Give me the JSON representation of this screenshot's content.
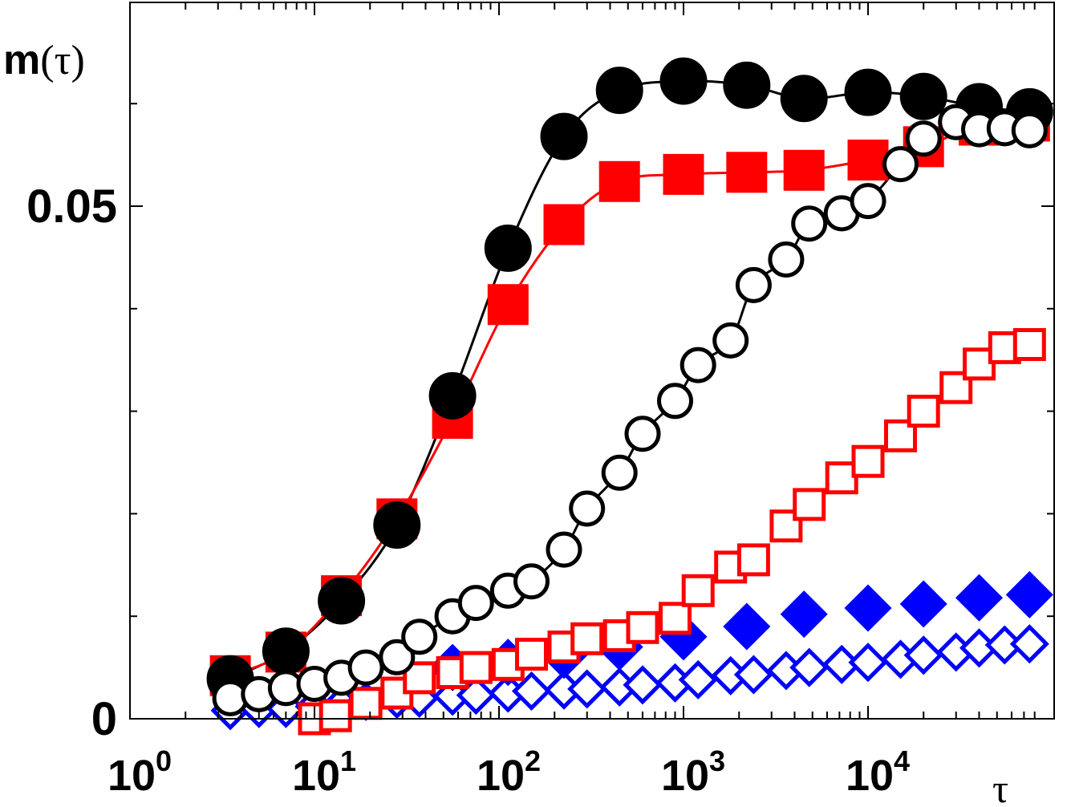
{
  "chart_data": {
    "type": "line",
    "title": "",
    "xlabel": "τ",
    "ylabel_bold": "m",
    "ylabel_rest": "(τ)",
    "x_scale": "log",
    "xlim": [
      1,
      80000
    ],
    "ylim": [
      0,
      0.07
    ],
    "x_tick_labels": [
      {
        "base": "10",
        "exp": "0",
        "value": 1
      },
      {
        "base": "10",
        "exp": "1",
        "value": 10
      },
      {
        "base": "10",
        "exp": "2",
        "value": 100
      },
      {
        "base": "10",
        "exp": "3",
        "value": 1000
      },
      {
        "base": "10",
        "exp": "4",
        "value": 10000
      }
    ],
    "y_tick_labels": [
      {
        "label": "0",
        "value": 0
      },
      {
        "label": "0.05",
        "value": 0.05
      }
    ],
    "y_minor_ticks": [
      0.01,
      0.02,
      0.03,
      0.04,
      0.06
    ],
    "grid": false,
    "series": [
      {
        "marker": "circle",
        "filled": true,
        "color": "#000000",
        "line": true,
        "x": [
          3.5,
          7,
          14,
          28,
          56,
          112,
          225,
          450,
          1000,
          2200,
          4500,
          10000,
          20000,
          40000,
          75000
        ],
        "y": [
          0.0039,
          0.0066,
          0.0115,
          0.0189,
          0.0315,
          0.0459,
          0.0568,
          0.0613,
          0.0622,
          0.0618,
          0.0605,
          0.0611,
          0.0607,
          0.0597,
          0.0592
        ]
      },
      {
        "marker": "square",
        "filled": true,
        "color": "#ff0000",
        "line": true,
        "x": [
          3.5,
          7,
          14,
          28,
          56,
          112,
          225,
          450,
          1000,
          2200,
          4500,
          10000,
          20000,
          40000,
          75000
        ],
        "y": [
          0.0042,
          0.0065,
          0.012,
          0.0195,
          0.0293,
          0.0404,
          0.0482,
          0.0524,
          0.0531,
          0.0533,
          0.0535,
          0.0545,
          0.0558,
          0.0579,
          0.0583
        ]
      },
      {
        "marker": "circle",
        "filled": false,
        "color": "#000000",
        "line": true,
        "x": [
          3.5,
          5,
          7,
          10,
          14,
          19,
          28,
          37,
          56,
          75,
          112,
          150,
          225,
          300,
          450,
          600,
          900,
          1200,
          1800,
          2400,
          3600,
          4800,
          7200,
          10000,
          15000,
          20000,
          30000,
          40000,
          55000,
          75000
        ],
        "y": [
          0.002,
          0.0024,
          0.003,
          0.0034,
          0.004,
          0.005,
          0.006,
          0.008,
          0.01,
          0.0113,
          0.0125,
          0.0134,
          0.0165,
          0.0205,
          0.024,
          0.0278,
          0.031,
          0.0345,
          0.0369,
          0.0423,
          0.0448,
          0.0483,
          0.0493,
          0.0505,
          0.0541,
          0.0566,
          0.0582,
          0.0575,
          0.0576,
          0.0574
        ]
      },
      {
        "marker": "square",
        "filled": false,
        "color": "#ff0000",
        "line": false,
        "x": [
          10,
          13,
          19,
          28,
          37,
          56,
          75,
          112,
          150,
          225,
          300,
          450,
          600,
          900,
          1200,
          1800,
          2400,
          3600,
          4800,
          7200,
          10000,
          15000,
          20000,
          30000,
          40000,
          55000,
          75000
        ],
        "y": [
          0.0,
          0.0003,
          0.0015,
          0.0025,
          0.004,
          0.0045,
          0.005,
          0.0053,
          0.0063,
          0.007,
          0.0078,
          0.0081,
          0.0089,
          0.0098,
          0.0125,
          0.0148,
          0.0155,
          0.0188,
          0.0209,
          0.0235,
          0.0251,
          0.0276,
          0.03,
          0.0323,
          0.0346,
          0.0362,
          0.0365
        ]
      },
      {
        "marker": "diamond",
        "filled": true,
        "color": "#0000ff",
        "line": false,
        "x": [
          56,
          112,
          225,
          450,
          1000,
          2200,
          4500,
          10000,
          20000,
          40000,
          75000
        ],
        "y": [
          0.005,
          0.0055,
          0.0062,
          0.007,
          0.008,
          0.009,
          0.0102,
          0.0108,
          0.0112,
          0.0118,
          0.0121
        ]
      },
      {
        "marker": "diamond",
        "filled": false,
        "color": "#0000ff",
        "line": false,
        "x": [
          3.5,
          5,
          7,
          10,
          14,
          19,
          28,
          37,
          56,
          75,
          112,
          150,
          225,
          300,
          450,
          600,
          900,
          1200,
          1800,
          2400,
          3600,
          4800,
          7200,
          10000,
          15000,
          20000,
          30000,
          40000,
          55000,
          75000
        ],
        "y": [
          0.0008,
          0.001,
          0.001,
          0.0012,
          0.0014,
          0.0017,
          0.0019,
          0.002,
          0.0022,
          0.0023,
          0.0025,
          0.0027,
          0.0028,
          0.0029,
          0.0031,
          0.0033,
          0.0035,
          0.0038,
          0.0042,
          0.0043,
          0.0047,
          0.005,
          0.0053,
          0.0055,
          0.0058,
          0.0062,
          0.0065,
          0.0069,
          0.0072,
          0.0073
        ]
      }
    ]
  }
}
